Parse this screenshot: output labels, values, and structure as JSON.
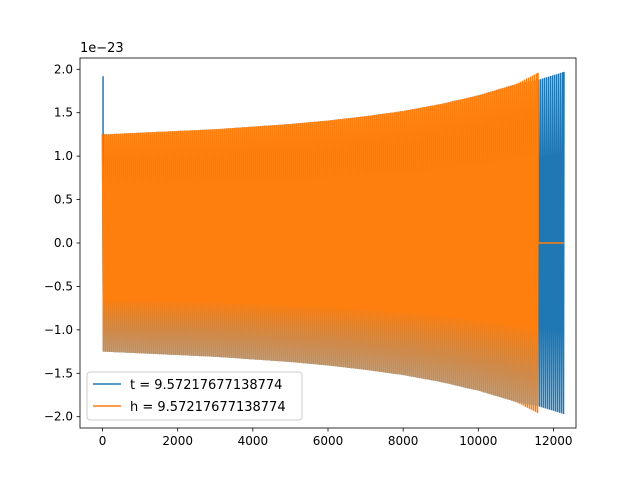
{
  "chart_data": {
    "type": "line",
    "title": "",
    "xlabel": "",
    "ylabel": "",
    "y_offset_label": "1e−23",
    "xlim": [
      -600,
      12600
    ],
    "ylim": [
      -2.13,
      2.13
    ],
    "x_ticks": [
      0,
      2000,
      4000,
      6000,
      8000,
      10000,
      12000
    ],
    "x_tick_labels": [
      "0",
      "2000",
      "4000",
      "6000",
      "8000",
      "10000",
      "12000"
    ],
    "y_ticks": [
      -2.0,
      -1.5,
      -1.0,
      -0.5,
      0.0,
      0.5,
      1.0,
      1.5,
      2.0
    ],
    "y_tick_labels": [
      "−2.0",
      "−1.5",
      "−1.0",
      "−0.5",
      "0.0",
      "0.5",
      "1.0",
      "1.5",
      "2.0"
    ],
    "grid": false,
    "legend_position": "lower-left",
    "series": [
      {
        "name": "t = 9.57217677138774",
        "color": "#1f77b4",
        "envelope_x": [
          0,
          1000,
          2000,
          3000,
          4000,
          5000,
          6000,
          7000,
          8000,
          9000,
          10000,
          11000,
          11600,
          12280
        ],
        "envelope_amp": [
          1.25,
          1.27,
          1.29,
          1.31,
          1.34,
          1.37,
          1.41,
          1.46,
          1.52,
          1.6,
          1.7,
          1.83,
          1.88,
          1.97
        ],
        "spike": {
          "x": 0,
          "ymax": 1.92,
          "ymin": 0.88
        },
        "tail": []
      },
      {
        "name": "h = 9.57217677138774",
        "color": "#ff7f0e",
        "envelope_x": [
          0,
          1000,
          2000,
          3000,
          4000,
          5000,
          6000,
          7000,
          8000,
          9000,
          10000,
          11000,
          11590
        ],
        "envelope_amp": [
          1.25,
          1.27,
          1.29,
          1.31,
          1.34,
          1.37,
          1.41,
          1.46,
          1.52,
          1.6,
          1.7,
          1.83,
          1.96
        ],
        "tail": [
          [
            11590,
            0.0
          ],
          [
            12280,
            0.0
          ]
        ]
      }
    ]
  }
}
